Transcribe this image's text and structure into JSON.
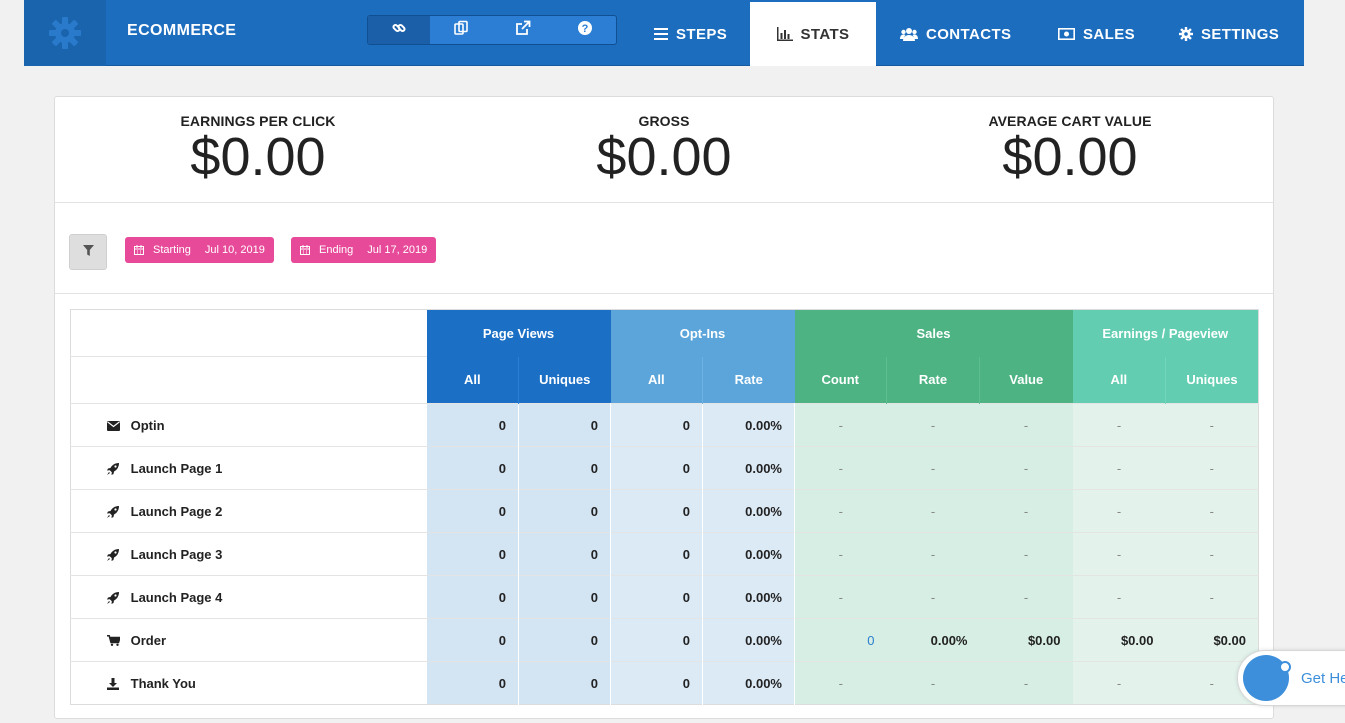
{
  "app": {
    "title": "ECOMMERCE"
  },
  "nav": {
    "tabs": [
      {
        "label": "STEPS",
        "icon": "list-icon"
      },
      {
        "label": "STATS",
        "icon": "bar-chart-icon"
      },
      {
        "label": "CONTACTS",
        "icon": "users-icon"
      },
      {
        "label": "SALES",
        "icon": "money-icon"
      },
      {
        "label": "SETTINGS",
        "icon": "gear-icon"
      }
    ],
    "active_tab": "STATS"
  },
  "tools": [
    "link-icon",
    "copy-icon",
    "external-link-icon",
    "help-icon"
  ],
  "summary": {
    "earnings_per_click": {
      "label": "EARNINGS PER CLICK",
      "value": "$0.00"
    },
    "gross": {
      "label": "GROSS",
      "value": "$0.00"
    },
    "average_cart_value": {
      "label": "AVERAGE CART VALUE",
      "value": "$0.00"
    }
  },
  "filters": {
    "start": {
      "label": "Starting",
      "date": "Jul 10, 2019"
    },
    "end": {
      "label": "Ending",
      "date": "Jul 17, 2019"
    }
  },
  "table": {
    "groups": {
      "page_views": "Page Views",
      "opt_ins": "Opt-Ins",
      "sales": "Sales",
      "earnings": "Earnings / Pageview"
    },
    "subheaders": {
      "pv_all": "All",
      "pv_uniques": "Uniques",
      "oi_all": "All",
      "oi_rate": "Rate",
      "s_count": "Count",
      "s_rate": "Rate",
      "s_value": "Value",
      "e_all": "All",
      "e_uniques": "Uniques"
    },
    "rows": [
      {
        "name": "Optin",
        "icon": "envelope-icon",
        "pv_all": "0",
        "pv_uniques": "0",
        "oi_all": "0",
        "oi_rate": "0.00%",
        "s_count": "-",
        "s_rate": "-",
        "s_value": "-",
        "e_all": "-",
        "e_uniques": "-"
      },
      {
        "name": "Launch Page 1",
        "icon": "rocket-icon",
        "pv_all": "0",
        "pv_uniques": "0",
        "oi_all": "0",
        "oi_rate": "0.00%",
        "s_count": "-",
        "s_rate": "-",
        "s_value": "-",
        "e_all": "-",
        "e_uniques": "-"
      },
      {
        "name": "Launch Page 2",
        "icon": "rocket-icon",
        "pv_all": "0",
        "pv_uniques": "0",
        "oi_all": "0",
        "oi_rate": "0.00%",
        "s_count": "-",
        "s_rate": "-",
        "s_value": "-",
        "e_all": "-",
        "e_uniques": "-"
      },
      {
        "name": "Launch Page 3",
        "icon": "rocket-icon",
        "pv_all": "0",
        "pv_uniques": "0",
        "oi_all": "0",
        "oi_rate": "0.00%",
        "s_count": "-",
        "s_rate": "-",
        "s_value": "-",
        "e_all": "-",
        "e_uniques": "-"
      },
      {
        "name": "Launch Page 4",
        "icon": "rocket-icon",
        "pv_all": "0",
        "pv_uniques": "0",
        "oi_all": "0",
        "oi_rate": "0.00%",
        "s_count": "-",
        "s_rate": "-",
        "s_value": "-",
        "e_all": "-",
        "e_uniques": "-"
      },
      {
        "name": "Order",
        "icon": "cart-icon",
        "pv_all": "0",
        "pv_uniques": "0",
        "oi_all": "0",
        "oi_rate": "0.00%",
        "s_count": "0",
        "s_rate": "0.00%",
        "s_value": "$0.00",
        "e_all": "$0.00",
        "e_uniques": "$0.00"
      },
      {
        "name": "Thank You",
        "icon": "download-icon",
        "pv_all": "0",
        "pv_uniques": "0",
        "oi_all": "0",
        "oi_rate": "0.00%",
        "s_count": "-",
        "s_rate": "-",
        "s_value": "-",
        "e_all": "-",
        "e_uniques": "-"
      }
    ]
  },
  "colors": {
    "header_blue": "#1d6dbf",
    "pageviews": "#1b6fc4",
    "optins": "#5ba5da",
    "sales": "#4db383",
    "earnings": "#62cdb0",
    "date_chip": "#e84a9a"
  },
  "help_widget": {
    "text": "Get He"
  }
}
